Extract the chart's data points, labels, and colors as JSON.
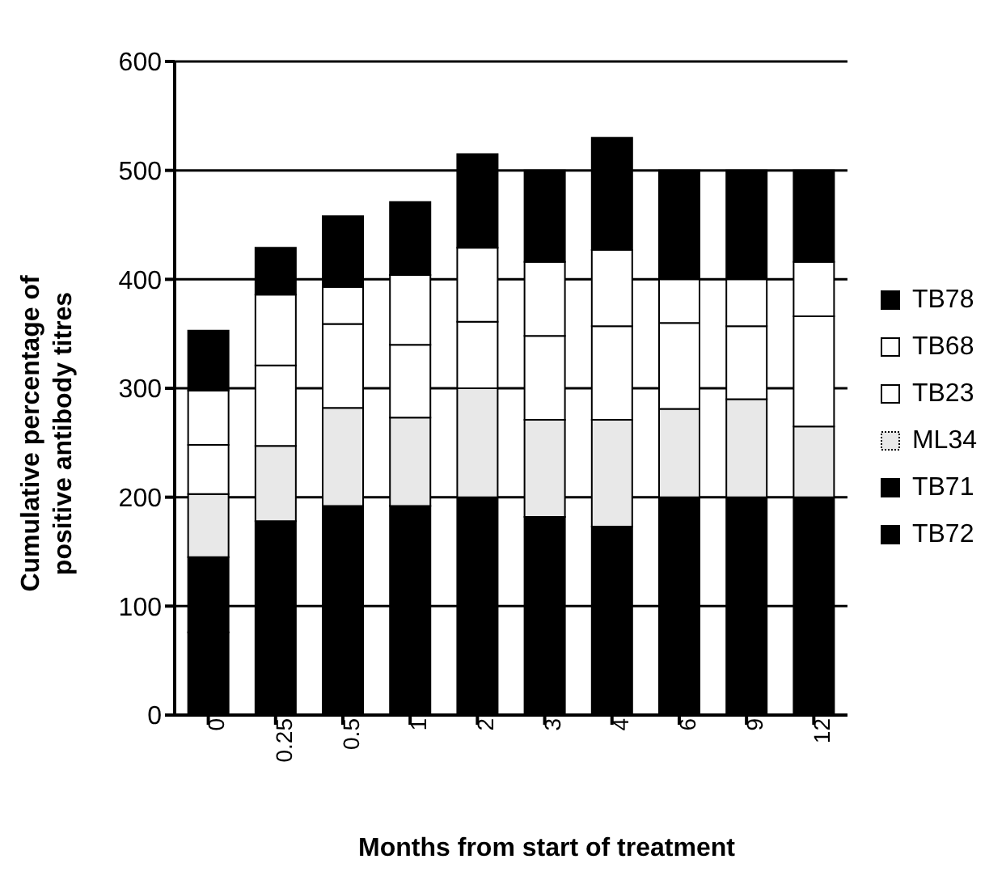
{
  "chart_data": {
    "type": "bar",
    "stacked": true,
    "xlabel": "Months from start of treatment",
    "ylabel": "Cumulative percentage of positive antibody titres",
    "categories": [
      "0",
      "0.25",
      "0.5",
      "1",
      "2",
      "3",
      "4",
      "6",
      "9",
      "12"
    ],
    "series": [
      {
        "name": "TB72",
        "color": "#000000",
        "values": [
          76,
          178,
          192,
          192,
          200,
          182,
          173,
          200,
          200,
          200
        ]
      },
      {
        "name": "TB71",
        "color": "#000000",
        "values": [
          69,
          null,
          null,
          null,
          null,
          null,
          null,
          null,
          null,
          null
        ]
      },
      {
        "name": "ML34",
        "color": "#e8e8e8",
        "values": [
          58,
          69,
          90,
          81,
          100,
          89,
          98,
          81,
          90,
          65
        ]
      },
      {
        "name": "TB23",
        "color": "#ffffff",
        "values": [
          45,
          74,
          77,
          67,
          61,
          77,
          86,
          79,
          67,
          101
        ]
      },
      {
        "name": "TB68",
        "color": "#ffffff",
        "values": [
          50,
          65,
          34,
          64,
          68,
          68,
          70,
          40,
          43,
          50
        ]
      },
      {
        "name": "TB78",
        "color": "#000000",
        "values": [
          55,
          43,
          65,
          67,
          86,
          84,
          103,
          100,
          100,
          84
        ]
      }
    ],
    "ylim": [
      0,
      600
    ],
    "yticks": [
      0,
      100,
      200,
      300,
      400,
      500,
      600
    ],
    "grid": "y",
    "legend": "right"
  }
}
